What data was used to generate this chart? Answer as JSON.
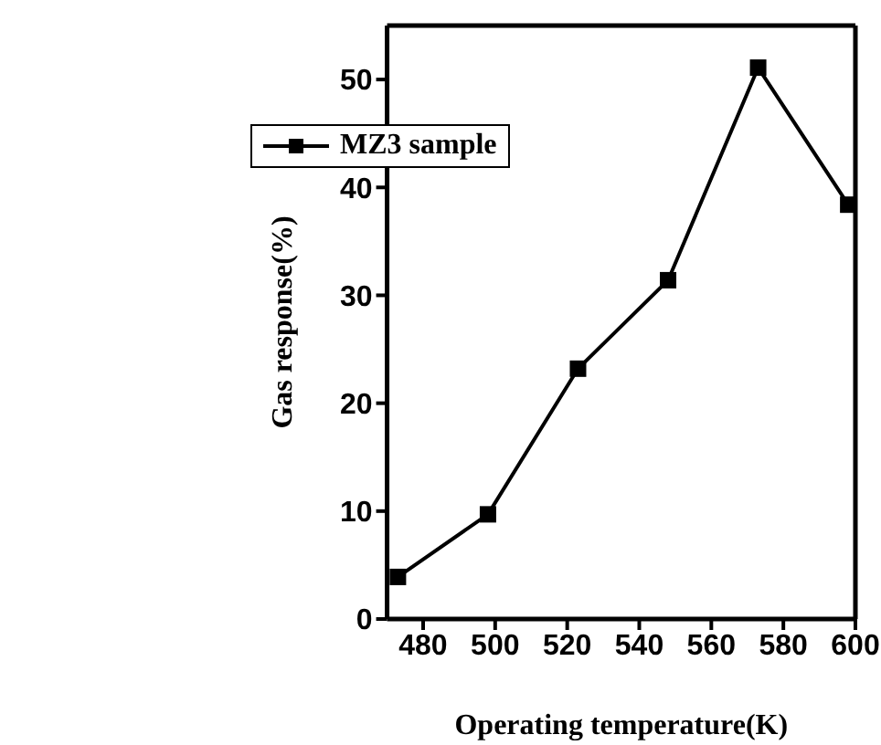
{
  "chart_data": {
    "type": "line",
    "xlabel": "Operating temperature(K)",
    "ylabel": "Gas response(%)",
    "x": [
      473,
      498,
      523,
      548,
      573,
      598
    ],
    "series": [
      {
        "name": "MZ3 sample",
        "color": "#000000",
        "values": [
          3.9,
          9.7,
          23.2,
          31.4,
          51.1,
          38.4
        ]
      }
    ],
    "xlim": [
      470,
      600
    ],
    "xticks": [
      480,
      500,
      520,
      540,
      560,
      580,
      600
    ],
    "ylim": [
      0,
      55
    ],
    "yticks": [
      0,
      10,
      20,
      30,
      40,
      50
    ],
    "grid": false,
    "legend": "top left",
    "marker": "square",
    "line_style": "solid"
  }
}
